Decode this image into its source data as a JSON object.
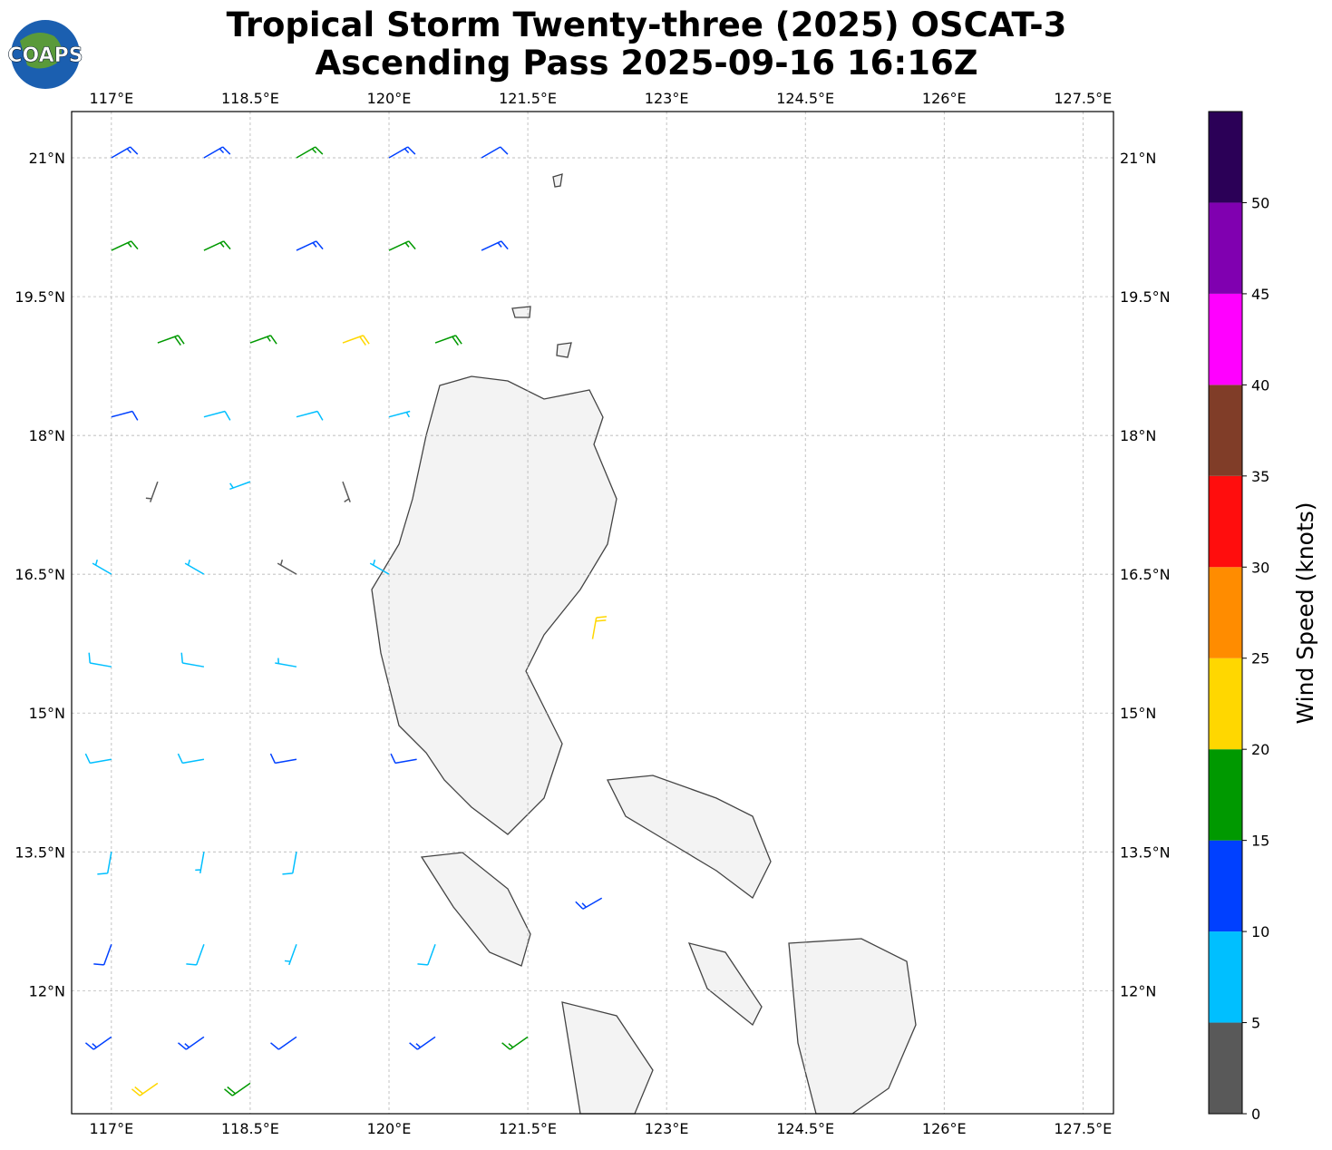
{
  "chart_data": {
    "type": "barbs",
    "logo": "COAPS",
    "title": "Tropical Storm Twenty-three (2025) OSCAT-3",
    "subtitle": "Ascending Pass 2025-09-16 16:16Z",
    "xlim": [
      116.57,
      127.83
    ],
    "ylim": [
      10.67,
      21.5
    ],
    "grid": true,
    "xticks": [
      {
        "value": 117,
        "label": "117°E"
      },
      {
        "value": 118.5,
        "label": "118.5°E"
      },
      {
        "value": 120,
        "label": "120°E"
      },
      {
        "value": 121.5,
        "label": "121.5°E"
      },
      {
        "value": 123,
        "label": "123°E"
      },
      {
        "value": 124.5,
        "label": "124.5°E"
      },
      {
        "value": 126,
        "label": "126°E"
      },
      {
        "value": 127.5,
        "label": "127.5°E"
      }
    ],
    "yticks": [
      {
        "value": 21,
        "label": "21°N"
      },
      {
        "value": 19.5,
        "label": "19.5°N"
      },
      {
        "value": 18,
        "label": "18°N"
      },
      {
        "value": 16.5,
        "label": "16.5°N"
      },
      {
        "value": 15,
        "label": "15°N"
      },
      {
        "value": 13.5,
        "label": "13.5°N"
      },
      {
        "value": 12,
        "label": "12°N"
      }
    ],
    "colorbar": {
      "label": "Wind Speed (knots)",
      "lim": [
        0,
        55
      ],
      "ticks": [
        0,
        5,
        10,
        15,
        20,
        25,
        30,
        35,
        40,
        45,
        50
      ],
      "bounds": [
        0,
        5,
        10,
        15,
        20,
        25,
        30,
        35,
        40,
        45,
        50,
        55
      ],
      "colors": [
        "#595959",
        "#00bfff",
        "#0040ff",
        "#009900",
        "#ffd700",
        "#ff8c00",
        "#ff0d0d",
        "#803d28",
        "#ff00ff",
        "#8000b0",
        "#2b0057"
      ]
    },
    "barbs": {
      "lon": [
        117,
        118,
        119,
        120,
        121,
        117,
        118,
        119,
        120,
        121,
        117.5,
        118.5,
        119.5,
        120.5,
        117,
        118,
        119,
        120,
        117.5,
        118.5,
        119.5,
        117,
        118,
        119,
        120,
        117,
        118,
        119,
        117,
        118,
        119,
        120.3,
        117,
        118,
        119,
        117,
        118,
        119,
        120.5,
        117,
        118,
        119,
        120.5,
        121.5,
        117.5,
        118.5,
        122.2,
        122.3
      ],
      "lat": [
        21,
        21,
        21,
        21,
        21,
        20,
        20,
        20,
        20,
        20,
        19,
        19,
        19,
        19,
        18.2,
        18.2,
        18.2,
        18.2,
        17.5,
        17.5,
        17.5,
        16.5,
        16.5,
        16.5,
        16.5,
        15.5,
        15.5,
        15.5,
        14.5,
        14.5,
        14.5,
        14.5,
        13.5,
        13.5,
        13.5,
        12.5,
        12.5,
        12.5,
        12.5,
        11.5,
        11.5,
        11.5,
        11.5,
        11.5,
        11,
        11,
        15.8,
        13
      ],
      "speeds": [
        14,
        13,
        17,
        14,
        12,
        17,
        16,
        14,
        17,
        13,
        18,
        17,
        22,
        19,
        12,
        9,
        8,
        6,
        4,
        7,
        3,
        7,
        6,
        4,
        5,
        8,
        9,
        6,
        8,
        9,
        11,
        12,
        9,
        7,
        8,
        11,
        8,
        7,
        9,
        13,
        14,
        12,
        13,
        16,
        22,
        18,
        22,
        13
      ],
      "directions": [
        60,
        60,
        60,
        60,
        60,
        65,
        65,
        65,
        65,
        65,
        70,
        70,
        70,
        70,
        75,
        75,
        75,
        75,
        200,
        250,
        160,
        300,
        300,
        300,
        300,
        280,
        280,
        280,
        260,
        260,
        260,
        260,
        190,
        190,
        190,
        200,
        200,
        200,
        200,
        235,
        235,
        235,
        235,
        235,
        235,
        235,
        10,
        240
      ]
    }
  }
}
